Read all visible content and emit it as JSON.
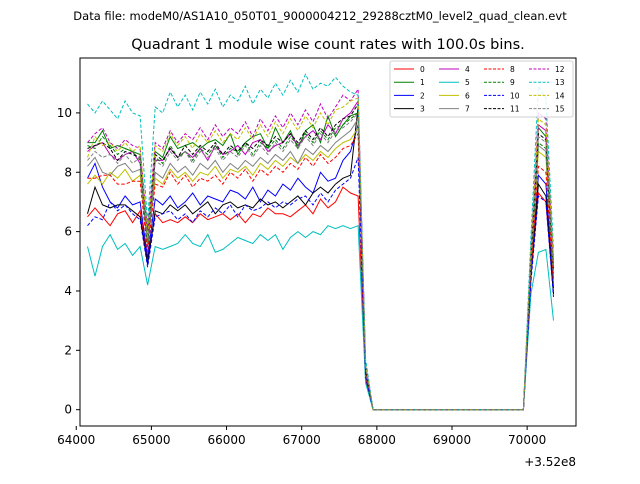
{
  "figure": {
    "suptitle": "Data file: modeM0/AS1A10_050T01_9000004212_29288cztM0_level2_quad_clean.evt"
  },
  "chart_data": {
    "type": "line",
    "title": "Quadrant 1 module wise count rates with 100.0s bins.",
    "xlabel": "",
    "ylabel": "",
    "x_offset_label": "+3.52e8",
    "xlim": [
      64050,
      70650
    ],
    "ylim": [
      -0.55,
      11.85
    ],
    "xticks": [
      64000,
      65000,
      66000,
      67000,
      68000,
      69000,
      70000
    ],
    "xtick_labels": [
      "64000",
      "65000",
      "66000",
      "67000",
      "68000",
      "69000",
      "70000"
    ],
    "yticks": [
      0,
      2,
      4,
      6,
      8,
      10
    ],
    "ytick_labels": [
      "0",
      "2",
      "4",
      "6",
      "8",
      "10"
    ],
    "grid": false,
    "legend_position": "top-right",
    "x": [
      64150,
      64250,
      64350,
      64450,
      64550,
      64650,
      64750,
      64850,
      64950,
      65050,
      65150,
      65250,
      65350,
      65450,
      65550,
      65650,
      65750,
      65850,
      65950,
      66050,
      66150,
      66250,
      66350,
      66450,
      66550,
      66650,
      66750,
      66850,
      66950,
      67050,
      67150,
      67250,
      67350,
      67450,
      67550,
      67650,
      67750,
      67850,
      67950,
      68050,
      68150,
      68250,
      68350,
      68450,
      68550,
      68650,
      68750,
      68850,
      68950,
      69050,
      69150,
      69250,
      69350,
      69450,
      69550,
      69650,
      69750,
      69850,
      69950,
      70050,
      70150,
      70250,
      70350
    ],
    "series": [
      {
        "name": "0",
        "color": "#ff0000",
        "dash": "solid",
        "values": [
          6.5,
          6.8,
          6.5,
          6.2,
          6.6,
          6.7,
          6.3,
          6.7,
          5.0,
          6.6,
          6.3,
          6.4,
          6.3,
          6.5,
          6.3,
          6.6,
          6.4,
          6.5,
          6.6,
          6.4,
          6.6,
          6.3,
          6.6,
          6.5,
          6.8,
          6.6,
          6.6,
          6.5,
          6.7,
          6.9,
          6.6,
          7.1,
          6.8,
          7.0,
          7.5,
          7.3,
          7.2,
          1.0,
          0,
          0,
          0,
          0,
          0,
          0,
          0,
          0,
          0,
          0,
          0,
          0,
          0,
          0,
          0,
          0,
          0,
          0,
          0,
          0,
          0,
          4.5,
          7.3,
          7.0,
          3.9
        ]
      },
      {
        "name": "1",
        "color": "#008000",
        "dash": "solid",
        "values": [
          9.0,
          9.0,
          9.4,
          8.8,
          8.9,
          8.8,
          8.7,
          8.6,
          6.0,
          8.7,
          8.5,
          9.2,
          8.8,
          8.9,
          9.0,
          8.8,
          9.0,
          9.1,
          8.9,
          9.3,
          8.6,
          9.0,
          9.2,
          9.3,
          8.8,
          9.5,
          9.0,
          9.4,
          8.8,
          9.4,
          9.6,
          9.0,
          9.9,
          9.2,
          9.6,
          9.9,
          10.0,
          1.4,
          0,
          0,
          0,
          0,
          0,
          0,
          0,
          0,
          0,
          0,
          0,
          0,
          0,
          0,
          0,
          0,
          0,
          0,
          0,
          0,
          0,
          5.0,
          9.5,
          9.2,
          4.8
        ]
      },
      {
        "name": "2",
        "color": "#0000ff",
        "dash": "solid",
        "values": [
          7.8,
          8.3,
          7.5,
          7.0,
          6.8,
          7.2,
          6.9,
          7.0,
          5.1,
          7.1,
          6.9,
          7.2,
          6.8,
          7.0,
          7.3,
          6.9,
          7.2,
          7.1,
          7.0,
          7.4,
          7.3,
          7.1,
          7.5,
          7.0,
          7.4,
          7.2,
          7.6,
          7.4,
          7.8,
          7.5,
          7.3,
          8.0,
          7.7,
          7.8,
          8.4,
          8.7,
          9.6,
          1.2,
          0,
          0,
          0,
          0,
          0,
          0,
          0,
          0,
          0,
          0,
          0,
          0,
          0,
          0,
          0,
          0,
          0,
          0,
          0,
          0,
          0,
          4.5,
          7.9,
          7.6,
          4.1
        ]
      },
      {
        "name": "3",
        "color": "#000000",
        "dash": "solid",
        "values": [
          6.6,
          7.5,
          6.9,
          6.8,
          6.9,
          6.9,
          6.7,
          6.5,
          4.9,
          6.7,
          6.6,
          6.9,
          6.7,
          6.9,
          6.6,
          6.8,
          7.0,
          6.6,
          6.9,
          7.0,
          6.8,
          6.9,
          6.8,
          7.1,
          6.9,
          7.0,
          6.8,
          7.0,
          7.2,
          6.9,
          7.3,
          7.5,
          7.3,
          7.6,
          7.8,
          7.9,
          10.2,
          1.2,
          0,
          0,
          0,
          0,
          0,
          0,
          0,
          0,
          0,
          0,
          0,
          0,
          0,
          0,
          0,
          0,
          0,
          0,
          0,
          0,
          0,
          4.5,
          7.6,
          7.2,
          3.9
        ]
      },
      {
        "name": "4",
        "color": "#bf00bf",
        "dash": "solid",
        "values": [
          8.7,
          8.9,
          9.0,
          8.6,
          8.4,
          8.6,
          8.7,
          8.3,
          5.7,
          8.4,
          8.4,
          8.8,
          8.5,
          8.7,
          8.5,
          8.8,
          8.4,
          8.9,
          8.6,
          8.7,
          8.9,
          8.6,
          9.0,
          9.1,
          8.7,
          8.9,
          9.0,
          9.3,
          8.9,
          9.2,
          9.4,
          9.1,
          9.6,
          9.3,
          9.8,
          10.0,
          10.4,
          1.5,
          0,
          0,
          0,
          0,
          0,
          0,
          0,
          0,
          0,
          0,
          0,
          0,
          0,
          0,
          0,
          0,
          0,
          0,
          0,
          0,
          0,
          5.2,
          9.6,
          9.4,
          5.0
        ]
      },
      {
        "name": "5",
        "color": "#00bfbf",
        "dash": "solid",
        "values": [
          5.5,
          4.5,
          5.5,
          5.9,
          5.4,
          5.6,
          5.2,
          5.5,
          4.2,
          5.5,
          5.4,
          5.5,
          5.6,
          5.9,
          5.6,
          5.5,
          5.9,
          5.3,
          5.4,
          5.6,
          5.8,
          5.7,
          5.6,
          5.9,
          5.7,
          5.9,
          5.4,
          5.8,
          6.0,
          5.8,
          6.0,
          5.9,
          6.2,
          6.1,
          6.2,
          6.1,
          6.2,
          0.9,
          0,
          0,
          0,
          0,
          0,
          0,
          0,
          0,
          0,
          0,
          0,
          0,
          0,
          0,
          0,
          0,
          0,
          0,
          0,
          0,
          0,
          3.9,
          5.3,
          5.4,
          3.0
        ]
      },
      {
        "name": "6",
        "color": "#bfbf00",
        "dash": "solid",
        "values": [
          7.6,
          7.9,
          7.6,
          8.0,
          7.8,
          8.1,
          7.7,
          7.9,
          5.5,
          7.8,
          7.6,
          8.1,
          7.8,
          8.0,
          7.7,
          8.0,
          7.9,
          8.2,
          7.8,
          8.1,
          8.0,
          8.2,
          7.9,
          8.3,
          8.1,
          8.4,
          8.2,
          8.5,
          8.3,
          8.6,
          8.4,
          8.7,
          8.5,
          8.8,
          9.0,
          9.1,
          9.5,
          1.3,
          0,
          0,
          0,
          0,
          0,
          0,
          0,
          0,
          0,
          0,
          0,
          0,
          0,
          0,
          0,
          0,
          0,
          0,
          0,
          0,
          0,
          4.8,
          8.7,
          8.5,
          4.4
        ]
      },
      {
        "name": "7",
        "color": "#808080",
        "dash": "solid",
        "values": [
          8.2,
          8.5,
          8.0,
          7.9,
          8.2,
          8.3,
          8.0,
          8.1,
          5.5,
          8.0,
          7.8,
          8.3,
          8.0,
          8.2,
          7.9,
          8.3,
          8.1,
          8.4,
          8.0,
          8.3,
          8.1,
          8.4,
          8.2,
          8.5,
          8.3,
          8.6,
          8.4,
          8.7,
          8.3,
          8.8,
          8.6,
          8.9,
          8.7,
          9.0,
          9.2,
          9.4,
          9.8,
          1.3,
          0,
          0,
          0,
          0,
          0,
          0,
          0,
          0,
          0,
          0,
          0,
          0,
          0,
          0,
          0,
          0,
          0,
          0,
          0,
          0,
          0,
          4.9,
          8.9,
          8.7,
          4.5
        ]
      },
      {
        "name": "8",
        "color": "#ff0000",
        "dash": "dashed",
        "values": [
          7.8,
          7.8,
          7.9,
          7.9,
          7.6,
          7.6,
          7.7,
          7.7,
          5.3,
          7.6,
          7.5,
          8.0,
          7.6,
          7.9,
          7.5,
          7.8,
          7.7,
          7.9,
          7.6,
          8.0,
          7.8,
          8.1,
          7.7,
          8.1,
          7.9,
          8.2,
          8.0,
          8.3,
          8.1,
          8.5,
          8.2,
          8.6,
          8.3,
          8.5,
          8.8,
          8.9,
          9.3,
          1.3,
          0,
          0,
          0,
          0,
          0,
          0,
          0,
          0,
          0,
          0,
          0,
          0,
          0,
          0,
          0,
          0,
          0,
          0,
          0,
          0,
          0,
          4.6,
          8.2,
          8.0,
          4.3
        ]
      },
      {
        "name": "9",
        "color": "#008000",
        "dash": "dashed",
        "values": [
          8.9,
          8.8,
          9.2,
          8.9,
          8.6,
          8.8,
          8.7,
          8.4,
          5.5,
          8.5,
          8.3,
          8.9,
          8.5,
          8.7,
          8.4,
          8.8,
          8.6,
          8.9,
          8.5,
          8.8,
          8.7,
          9.0,
          8.6,
          9.0,
          8.8,
          9.1,
          8.8,
          9.2,
          8.9,
          9.3,
          9.0,
          9.4,
          9.1,
          9.5,
          9.6,
          9.8,
          10.0,
          1.4,
          0,
          0,
          0,
          0,
          0,
          0,
          0,
          0,
          0,
          0,
          0,
          0,
          0,
          0,
          0,
          0,
          0,
          0,
          0,
          0,
          0,
          5.0,
          9.0,
          8.8,
          4.6
        ]
      },
      {
        "name": "10",
        "color": "#0000ff",
        "dash": "dashed",
        "values": [
          6.2,
          6.5,
          6.4,
          7.0,
          6.7,
          6.9,
          6.6,
          6.4,
          4.8,
          6.5,
          6.6,
          6.7,
          6.4,
          6.6,
          6.3,
          6.7,
          6.5,
          6.8,
          6.6,
          6.9,
          6.5,
          6.9,
          6.7,
          6.8,
          7.0,
          6.8,
          7.0,
          6.9,
          7.1,
          7.2,
          6.9,
          7.3,
          7.0,
          7.4,
          7.6,
          7.8,
          8.5,
          1.1,
          0,
          0,
          0,
          0,
          0,
          0,
          0,
          0,
          0,
          0,
          0,
          0,
          0,
          0,
          0,
          0,
          0,
          0,
          0,
          0,
          0,
          4.3,
          7.2,
          7.0,
          3.8
        ]
      },
      {
        "name": "11",
        "color": "#000000",
        "dash": "dashed",
        "values": [
          8.8,
          8.9,
          9.0,
          8.8,
          8.4,
          8.7,
          8.6,
          8.5,
          5.7,
          8.6,
          8.4,
          8.8,
          8.5,
          8.9,
          8.6,
          8.9,
          8.7,
          9.0,
          8.6,
          8.9,
          8.7,
          9.0,
          8.8,
          9.1,
          8.9,
          9.2,
          9.0,
          9.3,
          9.0,
          9.4,
          9.1,
          9.5,
          9.2,
          9.6,
          9.8,
          9.9,
          10.3,
          1.4,
          0,
          0,
          0,
          0,
          0,
          0,
          0,
          0,
          0,
          0,
          0,
          0,
          0,
          0,
          0,
          0,
          0,
          0,
          0,
          0,
          0,
          5.1,
          9.3,
          9.1,
          4.7
        ]
      },
      {
        "name": "12",
        "color": "#bf00bf",
        "dash": "dashed",
        "values": [
          9.0,
          9.3,
          9.5,
          9.0,
          8.8,
          9.1,
          8.9,
          8.8,
          6.0,
          9.0,
          8.8,
          9.4,
          9.0,
          9.3,
          9.1,
          9.5,
          9.1,
          9.6,
          9.2,
          9.5,
          9.3,
          9.7,
          9.2,
          9.8,
          9.4,
          9.9,
          9.5,
          10.0,
          9.6,
          10.1,
          9.7,
          10.3,
          9.8,
          10.2,
          10.6,
          10.4,
          10.8,
          1.5,
          0,
          0,
          0,
          0,
          0,
          0,
          0,
          0,
          0,
          0,
          0,
          0,
          0,
          0,
          0,
          0,
          0,
          0,
          0,
          0,
          0,
          5.4,
          10.0,
          9.8,
          5.1
        ]
      },
      {
        "name": "13",
        "color": "#00bfbf",
        "dash": "dashed",
        "values": [
          10.3,
          10.0,
          10.4,
          10.1,
          9.8,
          10.4,
          10.0,
          9.9,
          6.3,
          10.2,
          10.0,
          10.7,
          10.2,
          10.6,
          10.1,
          10.7,
          10.3,
          10.8,
          10.2,
          10.6,
          10.4,
          10.9,
          10.3,
          10.8,
          10.5,
          11.0,
          10.6,
          11.1,
          10.7,
          11.3,
          10.8,
          11.0,
          10.9,
          11.2,
          10.9,
          10.7,
          10.6,
          1.7,
          0,
          0,
          0,
          0,
          0,
          0,
          0,
          0,
          0,
          0,
          0,
          0,
          0,
          0,
          0,
          0,
          0,
          0,
          0,
          0,
          0,
          5.8,
          10.9,
          10.5,
          5.4
        ]
      },
      {
        "name": "14",
        "color": "#bfbf00",
        "dash": "dashed",
        "values": [
          8.5,
          9.2,
          8.9,
          9.0,
          8.7,
          9.0,
          8.7,
          8.9,
          5.8,
          8.9,
          8.7,
          9.3,
          8.9,
          9.2,
          8.8,
          9.3,
          9.0,
          9.4,
          9.0,
          9.3,
          9.1,
          9.5,
          9.1,
          9.6,
          9.2,
          9.7,
          9.3,
          9.8,
          9.4,
          9.9,
          9.5,
          10.0,
          9.6,
          10.1,
          10.2,
          10.4,
          10.5,
          1.5,
          0,
          0,
          0,
          0,
          0,
          0,
          0,
          0,
          0,
          0,
          0,
          0,
          0,
          0,
          0,
          0,
          0,
          0,
          0,
          0,
          0,
          5.3,
          9.8,
          9.6,
          5.0
        ]
      },
      {
        "name": "15",
        "color": "#808080",
        "dash": "dashed",
        "values": [
          8.4,
          8.7,
          8.5,
          8.6,
          8.3,
          8.6,
          8.3,
          8.5,
          5.6,
          8.4,
          8.2,
          8.7,
          8.4,
          8.7,
          8.3,
          8.7,
          8.5,
          8.8,
          8.4,
          8.7,
          8.5,
          8.9,
          8.5,
          8.9,
          8.6,
          9.0,
          8.7,
          9.1,
          8.8,
          9.2,
          8.9,
          9.3,
          9.0,
          9.4,
          9.5,
          9.7,
          10.0,
          1.4,
          0,
          0,
          0,
          0,
          0,
          0,
          0,
          0,
          0,
          0,
          0,
          0,
          0,
          0,
          0,
          0,
          0,
          0,
          0,
          0,
          0,
          5.0,
          9.2,
          9.0,
          4.7
        ]
      }
    ]
  }
}
